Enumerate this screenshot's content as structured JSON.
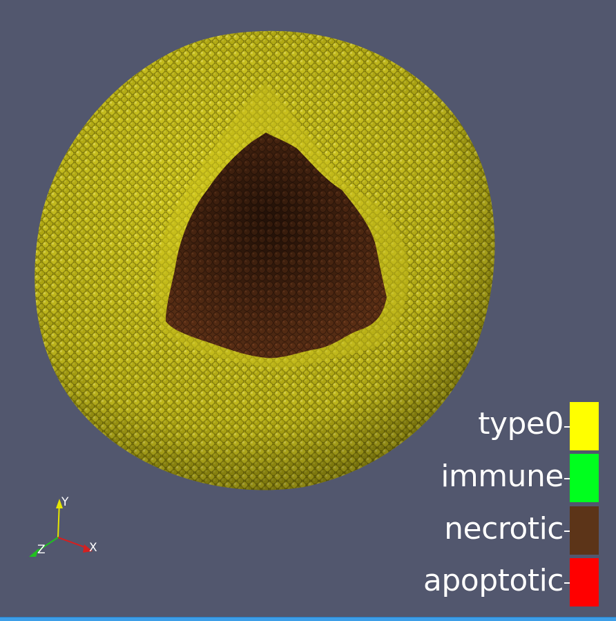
{
  "legend": {
    "items": [
      {
        "label": "type0",
        "color": "#ffff00"
      },
      {
        "label": "immune",
        "color": "#00ff1e"
      },
      {
        "label": "necrotic",
        "color": "#5c3418"
      },
      {
        "label": "apoptotic",
        "color": "#ff0000"
      }
    ]
  },
  "axes": {
    "x": {
      "label": "X",
      "color": "#d42020"
    },
    "y": {
      "label": "Y",
      "color": "#e6e600"
    },
    "z": {
      "label": "Z",
      "color": "#20c020"
    }
  },
  "scene": {
    "background": "#52576e",
    "shell_color": "#c9c21a",
    "shell_dark": "#6e6a0a",
    "core_color": "#4a2612",
    "core_dark": "#2a1408",
    "status_bar_color": "#3d9ee8"
  }
}
